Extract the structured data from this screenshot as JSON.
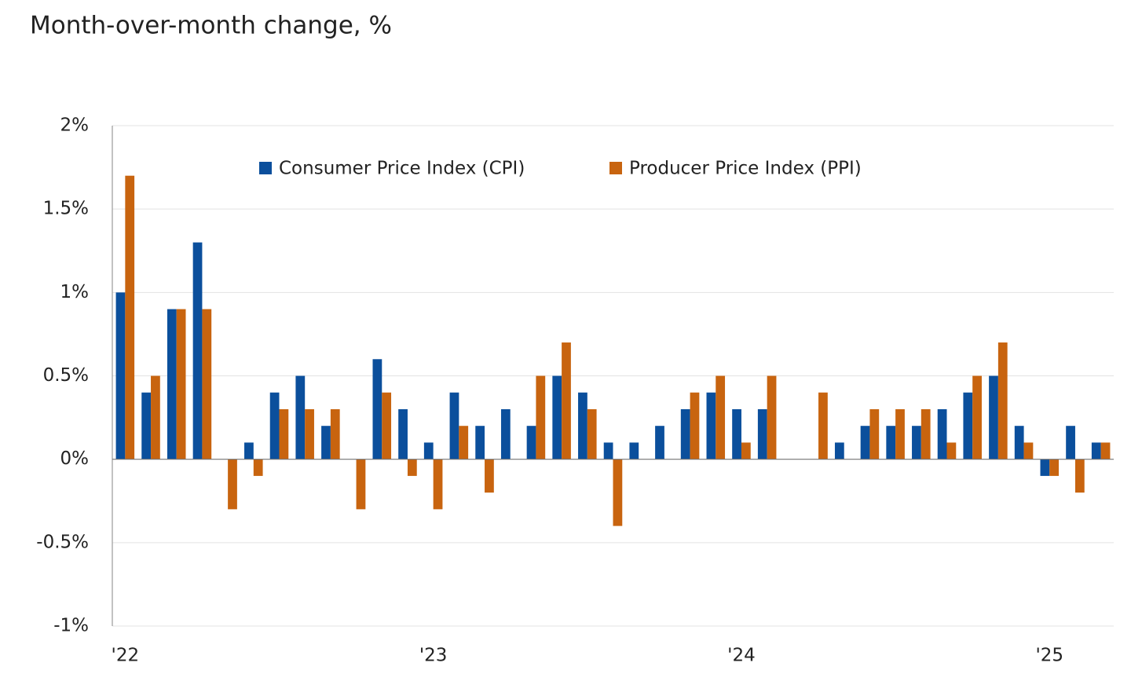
{
  "chart_data": {
    "type": "bar",
    "title": "Month-over-month change, %",
    "categories": [
      "'22",
      null,
      null,
      null,
      null,
      null,
      null,
      null,
      null,
      null,
      null,
      null,
      "'23",
      null,
      null,
      null,
      null,
      null,
      null,
      null,
      null,
      null,
      null,
      null,
      "'24",
      null,
      null,
      null,
      null,
      null,
      null,
      null,
      null,
      null,
      null,
      null,
      "'25",
      null,
      null
    ],
    "series": [
      {
        "name": "Consumer Price Index (CPI)",
        "color": "#0b4f9c",
        "values": [
          1.0,
          0.4,
          0.9,
          1.3,
          0,
          0.1,
          0.4,
          0.5,
          0.2,
          0,
          0.6,
          0.3,
          0.1,
          0.4,
          0.2,
          0.3,
          0.2,
          0.5,
          0.4,
          0.1,
          0.1,
          0.2,
          0.3,
          0.4,
          0.3,
          0.3,
          0,
          0,
          0.1,
          0.2,
          0.2,
          0.2,
          0.3,
          0.4,
          0.5,
          0.2,
          -0.1,
          0.2,
          0.1
        ]
      },
      {
        "name": "Producer Price Index (PPI)",
        "color": "#c8640f",
        "values": [
          1.7,
          0.5,
          0.9,
          0.9,
          -0.3,
          -0.1,
          0.3,
          0.3,
          0.3,
          -0.3,
          0.4,
          -0.1,
          -0.3,
          0.2,
          -0.2,
          0,
          0.5,
          0.7,
          0.3,
          -0.4,
          0,
          0,
          0.4,
          0.5,
          0.1,
          0.5,
          0,
          0.4,
          0,
          0.3,
          0.3,
          0.3,
          0.1,
          0.5,
          0.7,
          0.1,
          -0.1,
          -0.2,
          0.1
        ]
      }
    ],
    "ylim": [
      -1,
      2
    ],
    "yticks": [
      {
        "value": -1,
        "label": "-1%"
      },
      {
        "value": -0.5,
        "label": "-0.5%"
      },
      {
        "value": 0,
        "label": "0%"
      },
      {
        "value": 0.5,
        "label": "0.5%"
      },
      {
        "value": 1,
        "label": "1%"
      },
      {
        "value": 1.5,
        "label": "1.5%"
      },
      {
        "value": 2,
        "label": "2%"
      }
    ],
    "grid": true,
    "legend": "top"
  }
}
